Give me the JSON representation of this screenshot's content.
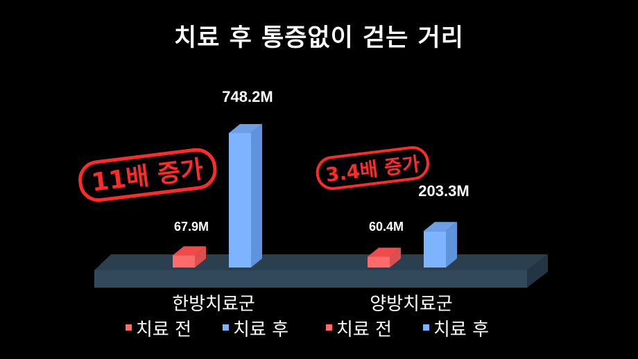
{
  "chart_data": {
    "type": "bar",
    "title": "치료 후 통증없이 걷는 거리",
    "categories": [
      "한방치료군",
      "양방치료군"
    ],
    "series": [
      {
        "name": "치료 전",
        "values": [
          67.9,
          60.4
        ],
        "color": "#ff6b6b"
      },
      {
        "name": "치료 후",
        "values": [
          748.2,
          203.3
        ],
        "color": "#7eb3ff"
      }
    ],
    "data_labels": [
      [
        "67.9M",
        "748.2M"
      ],
      [
        "60.4M",
        "203.3M"
      ]
    ],
    "legend": [
      "치료 전",
      "치료 후",
      "치료 전",
      "치료 후"
    ],
    "legend_placement": "bottom",
    "annotations": [
      "11배 증가",
      "3.4배 증가"
    ],
    "annotation_color": "#ff2a2a",
    "floor_color": "#2e4556",
    "grid": false,
    "style": "3d"
  }
}
